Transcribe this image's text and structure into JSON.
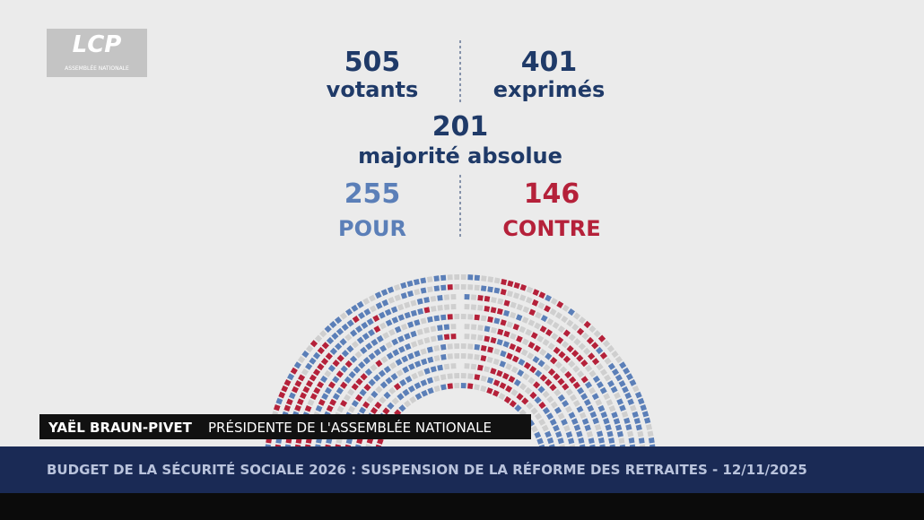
{
  "logo": {
    "name": "LCP",
    "subtitle": "ASSEMBLÉE NATIONALE"
  },
  "results": {
    "votants": {
      "value": 505,
      "label": "votants"
    },
    "exprimes": {
      "value": 401,
      "label": "exprimés"
    },
    "majorite": {
      "value": 201,
      "label": "majorité absolue"
    },
    "pour": {
      "value": 255,
      "label": "POUR"
    },
    "contre": {
      "value": 146,
      "label": "CONTRE"
    }
  },
  "lower_third": {
    "name": "YAËL BRAUN-PIVET",
    "role": "PRÉSIDENTE DE L'ASSEMBLÉE NATIONALE"
  },
  "ticker": {
    "text": "BUDGET DE LA SÉCURITÉ SOCIALE 2026 : SUSPENSION DE LA RÉFORME DES RETRAITES - 12/11/2025"
  }
}
